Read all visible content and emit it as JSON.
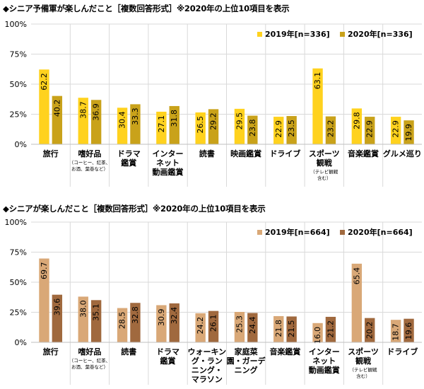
{
  "chart_data": [
    {
      "type": "bar",
      "title": "◆シニア予備軍が楽しんだこと［複数回答形式］※2020年の上位10項目を表示",
      "categories": [
        {
          "lines": [
            "旅行"
          ],
          "note": []
        },
        {
          "lines": [
            "嗜好品"
          ],
          "note": [
            "（コーヒー、紅茶、",
            "お酒、葉巻など）"
          ]
        },
        {
          "lines": [
            "ドラマ",
            "鑑賞"
          ],
          "note": []
        },
        {
          "lines": [
            "インター",
            "ネット",
            "動画鑑賞"
          ],
          "note": []
        },
        {
          "lines": [
            "読書"
          ],
          "note": []
        },
        {
          "lines": [
            "映画鑑賞"
          ],
          "note": []
        },
        {
          "lines": [
            "ドライブ"
          ],
          "note": []
        },
        {
          "lines": [
            "スポーツ",
            "観戦"
          ],
          "note": [
            "（テレビ観戦",
            "含む）"
          ]
        },
        {
          "lines": [
            "音楽鑑賞"
          ],
          "note": []
        },
        {
          "lines": [
            "グルメ巡り"
          ],
          "note": []
        }
      ],
      "series": [
        {
          "name": "2019年[n=336]",
          "color": "#FFD21E",
          "values": [
            62.2,
            38.7,
            30.4,
            27.1,
            26.5,
            29.5,
            22.9,
            63.1,
            29.8,
            22.9
          ]
        },
        {
          "name": "2020年[n=336]",
          "color": "#C9A21A",
          "values": [
            40.2,
            36.9,
            33.3,
            31.8,
            29.2,
            23.8,
            23.5,
            23.2,
            22.9,
            19.9
          ]
        }
      ],
      "y_ticks": [
        "0%",
        "25%",
        "50%",
        "75%",
        "100%"
      ],
      "ylim": [
        0,
        100
      ],
      "legend_position": "top-right"
    },
    {
      "type": "bar",
      "title": "◆シニアが楽しんだこと［複数回答形式］※2020年の上位10項目を表示",
      "categories": [
        {
          "lines": [
            "旅行"
          ],
          "note": []
        },
        {
          "lines": [
            "嗜好品"
          ],
          "note": [
            "（コーヒー、紅茶、",
            "お酒、葉巻など）"
          ]
        },
        {
          "lines": [
            "読書"
          ],
          "note": []
        },
        {
          "lines": [
            "ドラマ",
            "鑑賞"
          ],
          "note": []
        },
        {
          "lines": [
            "ウォーキン",
            "グ・ラン",
            "ニング・",
            "マラソン"
          ],
          "note": []
        },
        {
          "lines": [
            "家庭菜",
            "園・ガーデ",
            "ニング"
          ],
          "note": []
        },
        {
          "lines": [
            "音楽鑑賞"
          ],
          "note": []
        },
        {
          "lines": [
            "インター",
            "ネット",
            "動画鑑賞"
          ],
          "note": []
        },
        {
          "lines": [
            "スポーツ",
            "観戦"
          ],
          "note": [
            "（テレビ観戦",
            "含む）"
          ]
        },
        {
          "lines": [
            "ドライブ"
          ],
          "note": []
        }
      ],
      "series": [
        {
          "name": "2019年[n=664]",
          "color": "#D9A877",
          "values": [
            69.7,
            38.0,
            28.5,
            30.9,
            24.2,
            25.3,
            21.8,
            16.0,
            65.4,
            18.7
          ]
        },
        {
          "name": "2020年[n=664]",
          "color": "#A0693E",
          "values": [
            39.6,
            35.1,
            32.8,
            32.4,
            26.1,
            24.4,
            21.5,
            21.2,
            20.2,
            19.6
          ]
        }
      ],
      "y_ticks": [
        "0%",
        "25%",
        "50%",
        "75%",
        "100%"
      ],
      "ylim": [
        0,
        100
      ],
      "legend_position": "top-right"
    }
  ]
}
